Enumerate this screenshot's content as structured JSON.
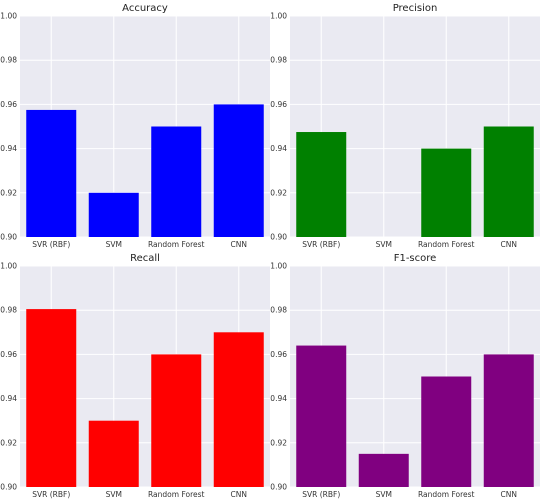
{
  "chart_data": [
    {
      "type": "bar",
      "title": "Accuracy",
      "categories": [
        "SVR (RBF)",
        "SVM",
        "Random Forest",
        "CNN"
      ],
      "values": [
        0.9575,
        0.92,
        0.95,
        0.96
      ],
      "ylim": [
        0.9,
        1.0
      ],
      "yticks": [
        "0.90",
        "0.92",
        "0.94",
        "0.96",
        "0.98",
        "1.00"
      ],
      "grid": true,
      "color": "#0000ff"
    },
    {
      "type": "bar",
      "title": "Precision",
      "categories": [
        "SVR (RBF)",
        "SVM",
        "Random Forest",
        "CNN"
      ],
      "values": [
        0.9475,
        0.9,
        0.94,
        0.95
      ],
      "ylim": [
        0.9,
        1.0
      ],
      "yticks": [
        "0.90",
        "0.92",
        "0.94",
        "0.96",
        "0.98",
        "1.00"
      ],
      "grid": true,
      "color": "#008000"
    },
    {
      "type": "bar",
      "title": "Recall",
      "categories": [
        "SVR (RBF)",
        "SVM",
        "Random Forest",
        "CNN"
      ],
      "values": [
        0.9805,
        0.93,
        0.96,
        0.97
      ],
      "ylim": [
        0.9,
        1.0
      ],
      "yticks": [
        "0.90",
        "0.92",
        "0.94",
        "0.96",
        "0.98",
        "1.00"
      ],
      "grid": true,
      "color": "#ff0000"
    },
    {
      "type": "bar",
      "title": "F1-score",
      "categories": [
        "SVR (RBF)",
        "SVM",
        "Random Forest",
        "CNN"
      ],
      "values": [
        0.964,
        0.915,
        0.95,
        0.96
      ],
      "ylim": [
        0.9,
        1.0
      ],
      "yticks": [
        "0.90",
        "0.92",
        "0.94",
        "0.96",
        "0.98",
        "1.00"
      ],
      "grid": true,
      "color": "#800080"
    }
  ]
}
